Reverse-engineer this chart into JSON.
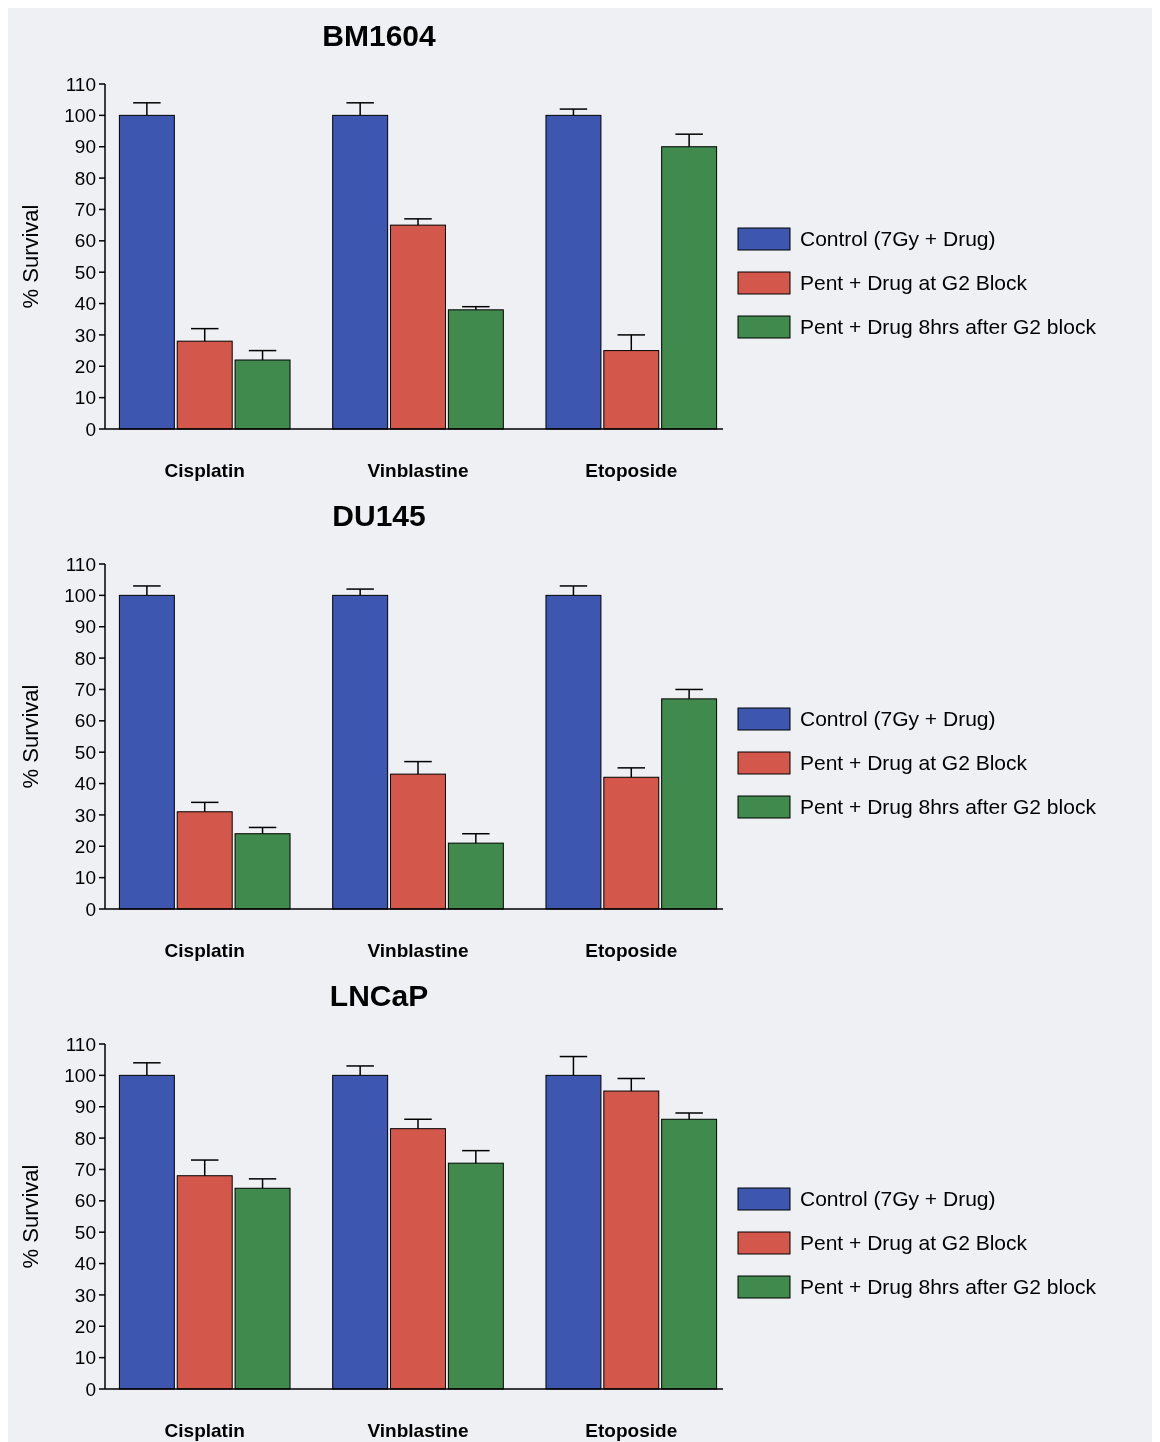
{
  "chart_data": [
    {
      "type": "bar",
      "title": "BM1604",
      "ylabel": "% Survival",
      "categories": [
        "Cisplatin",
        "Vinblastine",
        "Etoposide"
      ],
      "ylim": [
        0,
        110
      ],
      "yticks": [
        0,
        10,
        20,
        30,
        40,
        50,
        60,
        70,
        80,
        90,
        100,
        110
      ],
      "grid": false,
      "legend": "right",
      "series": [
        {
          "name": "Control (7Gy + Drug)",
          "color": "#3d56b0",
          "values": [
            100,
            100,
            100
          ],
          "errors": [
            [
              100,
              104
            ],
            [
              100,
              104
            ],
            [
              100,
              102
            ]
          ]
        },
        {
          "name": "Pent + Drug at G2 Block",
          "color": "#d4574b",
          "values": [
            28,
            65,
            25
          ],
          "errors": [
            [
              28,
              32
            ],
            [
              65,
              67
            ],
            [
              25,
              30
            ]
          ]
        },
        {
          "name": "Pent + Drug 8hrs after G2 block",
          "color": "#3f8a4c",
          "values": [
            22,
            38,
            90
          ],
          "errors": [
            [
              22,
              25
            ],
            [
              38,
              39
            ],
            [
              90,
              94
            ]
          ]
        }
      ]
    },
    {
      "type": "bar",
      "title": "DU145",
      "ylabel": "% Survival",
      "categories": [
        "Cisplatin",
        "Vinblastine",
        "Etoposide"
      ],
      "ylim": [
        0,
        110
      ],
      "yticks": [
        0,
        10,
        20,
        30,
        40,
        50,
        60,
        70,
        80,
        90,
        100,
        110
      ],
      "grid": false,
      "legend": "right",
      "series": [
        {
          "name": "Control (7Gy + Drug)",
          "color": "#3d56b0",
          "values": [
            100,
            100,
            100
          ],
          "errors": [
            [
              100,
              103
            ],
            [
              100,
              102
            ],
            [
              100,
              103
            ]
          ]
        },
        {
          "name": "Pent + Drug at G2 Block",
          "color": "#d4574b",
          "values": [
            31,
            43,
            42
          ],
          "errors": [
            [
              31,
              34
            ],
            [
              43,
              47
            ],
            [
              42,
              45
            ]
          ]
        },
        {
          "name": "Pent + Drug 8hrs after G2 block",
          "color": "#3f8a4c",
          "values": [
            24,
            21,
            67
          ],
          "errors": [
            [
              24,
              26
            ],
            [
              21,
              24
            ],
            [
              67,
              70
            ]
          ]
        }
      ]
    },
    {
      "type": "bar",
      "title": "LNCaP",
      "ylabel": "% Survival",
      "categories": [
        "Cisplatin",
        "Vinblastine",
        "Etoposide"
      ],
      "ylim": [
        0,
        110
      ],
      "yticks": [
        0,
        10,
        20,
        30,
        40,
        50,
        60,
        70,
        80,
        90,
        100,
        110
      ],
      "grid": false,
      "legend": "right",
      "series": [
        {
          "name": "Control (7Gy + Drug)",
          "color": "#3d56b0",
          "values": [
            100,
            100,
            100
          ],
          "errors": [
            [
              100,
              104
            ],
            [
              100,
              103
            ],
            [
              100,
              106
            ]
          ]
        },
        {
          "name": "Pent + Drug at G2 Block",
          "color": "#d4574b",
          "values": [
            68,
            83,
            95
          ],
          "errors": [
            [
              68,
              73
            ],
            [
              83,
              86
            ],
            [
              95,
              99
            ]
          ]
        },
        {
          "name": "Pent + Drug 8hrs after G2 block",
          "color": "#3f8a4c",
          "values": [
            64,
            72,
            86
          ],
          "errors": [
            [
              64,
              67
            ],
            [
              72,
              76
            ],
            [
              86,
              88
            ]
          ]
        }
      ]
    }
  ]
}
